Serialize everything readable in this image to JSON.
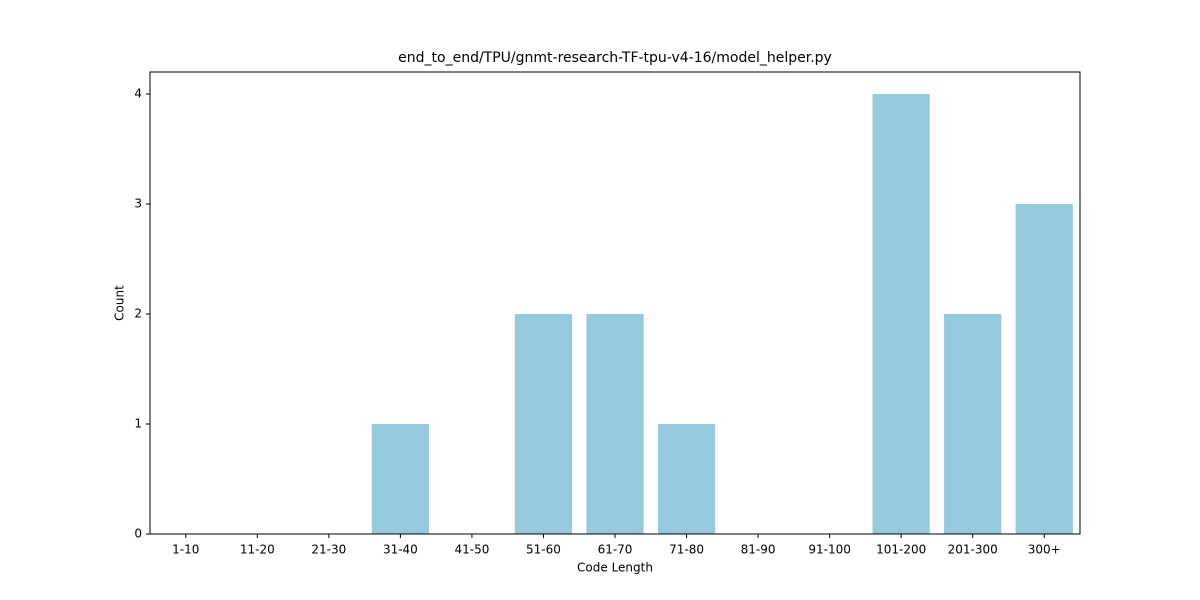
{
  "chart_data": {
    "type": "bar",
    "title": "end_to_end/TPU/gnmt-research-TF-tpu-v4-16/model_helper.py",
    "x_label": "Code Length",
    "y_label": "Count",
    "categories": [
      "1-10",
      "11-20",
      "21-30",
      "31-40",
      "41-50",
      "51-60",
      "61-70",
      "71-80",
      "81-90",
      "91-100",
      "101-200",
      "201-300",
      "300+"
    ],
    "values": [
      0,
      0,
      0,
      1,
      0,
      2,
      2,
      1,
      0,
      0,
      4,
      2,
      3
    ],
    "color": "#95c9de",
    "ylim": [
      0,
      4.2
    ],
    "yticks": [
      0,
      1,
      2,
      3,
      4
    ],
    "grid": false
  }
}
